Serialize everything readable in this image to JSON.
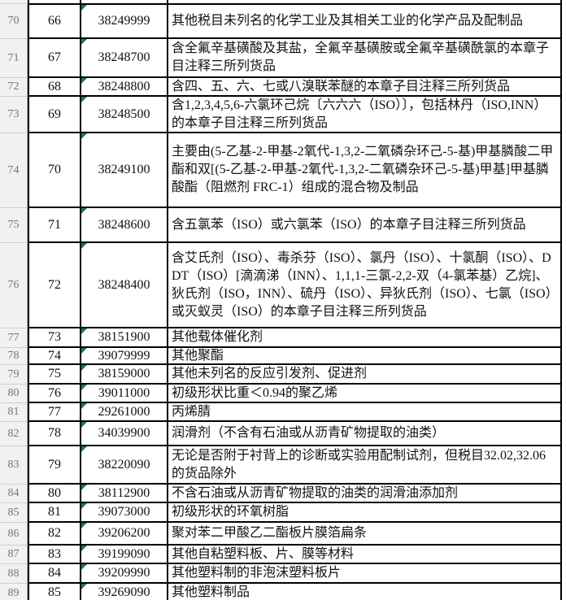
{
  "table": {
    "rows": [
      {
        "row": "70",
        "seq": "66",
        "code": "38249999",
        "desc": "其他税目未列名的化学工业及其相关工业的化学产品及配制品"
      },
      {
        "row": "71",
        "seq": "67",
        "code": "38248700",
        "desc": "含全氟辛基磺酸及其盐，全氟辛基磺胺或全氟辛基磺酰氯的本章子目注释三所列货品"
      },
      {
        "row": "72",
        "seq": "68",
        "code": "38248800",
        "desc": "含四、五、六、七或八溴联苯醚的本章子目注释三所列货品"
      },
      {
        "row": "73",
        "seq": "69",
        "code": "38248500",
        "desc": "含1,2,3,4,5,6-六氯环己烷〔六六六（ISO）〕，包括林丹（ISO,INN）的本章子目注释三所列货品"
      },
      {
        "row": "74",
        "seq": "70",
        "code": "38249100",
        "desc": "主要由(5-乙基-2-甲基-2氧代-1,3,2-二氧磷杂环己-5-基)甲基膦酸二甲酯和双[(5-乙基-2-甲基-2氧代-1,3,2-二氧磷杂环己-5-基)甲基]甲基膦酸酯（阻燃剂 FRC-1）组成的混合物及制品"
      },
      {
        "row": "75",
        "seq": "71",
        "code": "38248600",
        "desc": "含五氯苯（ISO）或六氯苯（ISO）的本章子目注释三所列货品"
      },
      {
        "row": "76",
        "seq": "72",
        "code": "38248400",
        "desc": "含艾氏剂（ISO）、毒杀芬（ISO）、氯丹（ISO）、十氯酮（ISO）、DDT（ISO）[滴滴涕（INN）、1,1,1-三氯-2,2-双（4-氯苯基）乙烷]、狄氏剂（ISO，INN）、硫丹（ISO）、异狄氏剂（ISO）、七氯（ISO）或灭蚁灵（ISO）的本章子目注释三所列货品"
      },
      {
        "row": "77",
        "seq": "73",
        "code": "38151900",
        "desc": "其他载体催化剂"
      },
      {
        "row": "78",
        "seq": "74",
        "code": "39079999",
        "desc": "其他聚酯"
      },
      {
        "row": "79",
        "seq": "75",
        "code": "38159000",
        "desc": "其他未列名的反应引发剂、促进剂"
      },
      {
        "row": "80",
        "seq": "76",
        "code": "39011000",
        "desc": "初级形状比重＜0.94的聚乙烯"
      },
      {
        "row": "81",
        "seq": "77",
        "code": "29261000",
        "desc": "丙烯腈"
      },
      {
        "row": "82",
        "seq": "78",
        "code": "34039900",
        "desc": "润滑剂（不含有石油或从沥青矿物提取的油类）"
      },
      {
        "row": "83",
        "seq": "79",
        "code": "38220090",
        "desc": "无论是否附于衬背上的诊断或实验用配制试剂，但税目32.02,32.06的货品除外"
      },
      {
        "row": "84",
        "seq": "80",
        "code": "38112900",
        "desc": "不含石油或从沥青矿物提取的油类的润滑油添加剂"
      },
      {
        "row": "85",
        "seq": "81",
        "code": "39073000",
        "desc": "初级形状的环氧树脂"
      },
      {
        "row": "86",
        "seq": "82",
        "code": "39206200",
        "desc": "聚对苯二甲酸乙二酯板片膜箔扁条"
      },
      {
        "row": "87",
        "seq": "83",
        "code": "39199090",
        "desc": "其他自粘塑料板、片、膜等材料"
      },
      {
        "row": "88",
        "seq": "84",
        "code": "39209990",
        "desc": "其他塑料制的非泡沫塑料板片"
      },
      {
        "row": "89",
        "seq": "85",
        "code": "39269090",
        "desc": "其他塑料制品"
      }
    ]
  },
  "colors": {
    "grid_border": "#000000",
    "cell_bg": "#ffffff",
    "cell_text": "#111111",
    "row_header_bg": "#f1f1f1",
    "row_header_text": "#757575",
    "error_indicator_green": "#1e7c3c"
  },
  "icons": {
    "error_indicator": "green-corner-triangle"
  }
}
